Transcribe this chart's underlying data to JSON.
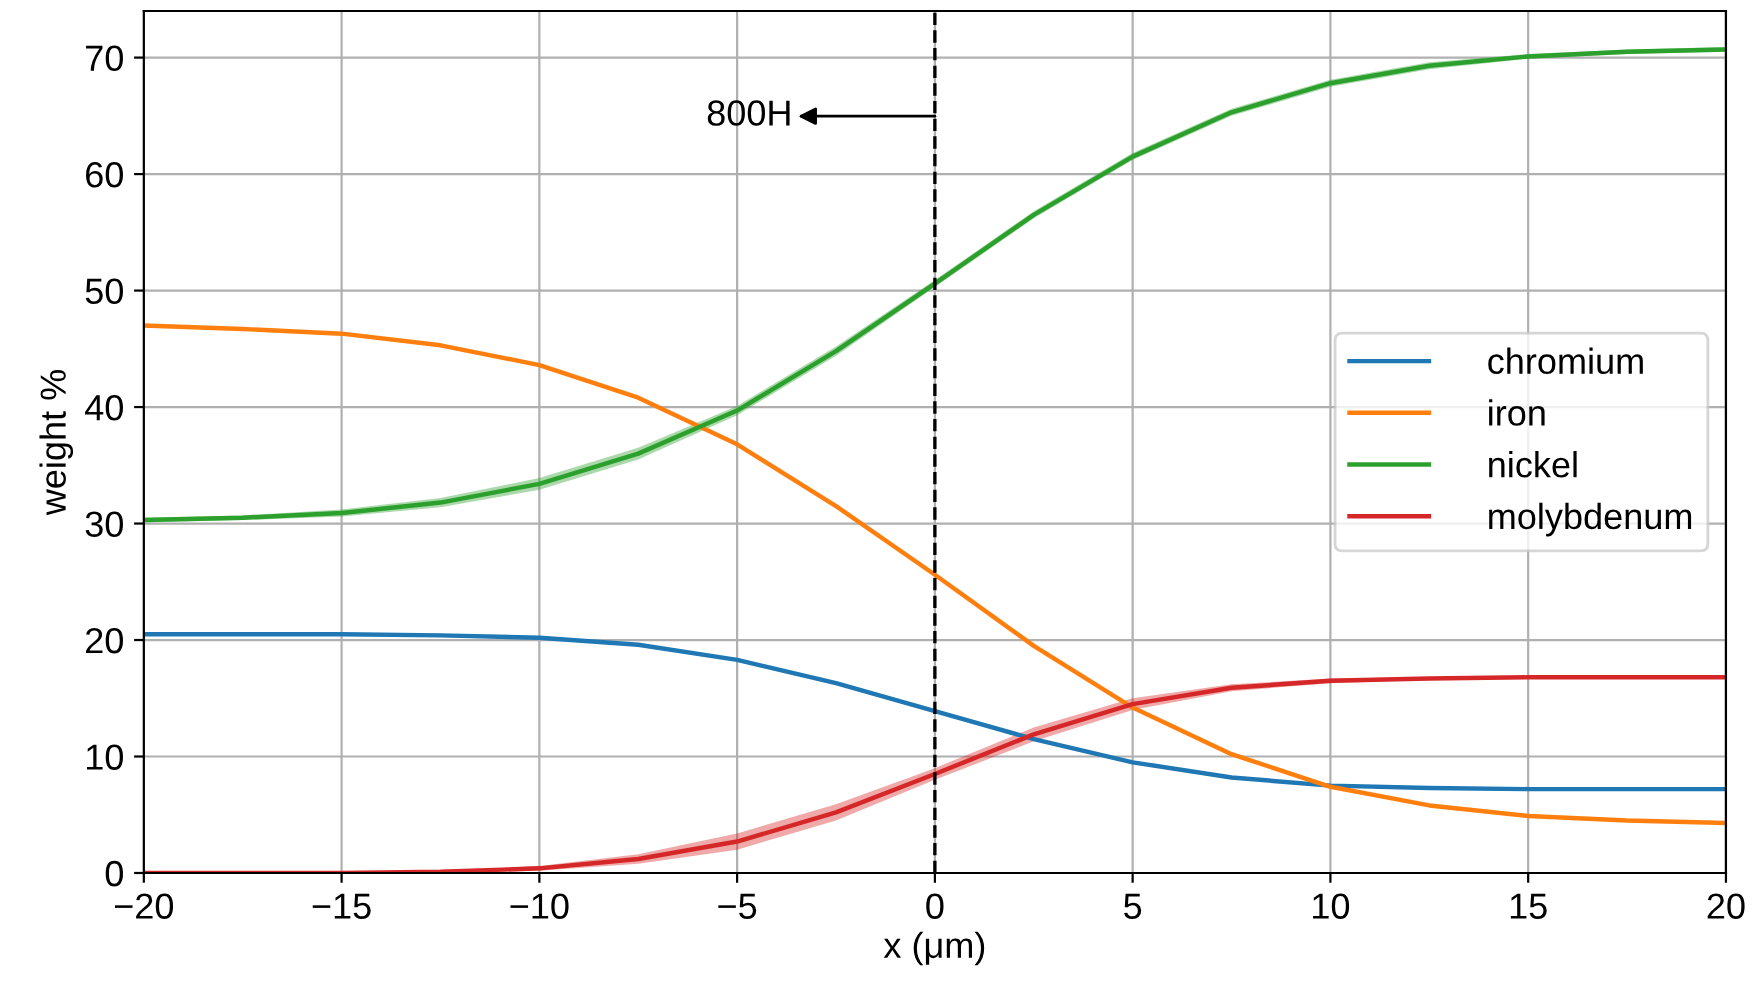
{
  "chart_data": {
    "type": "line",
    "xlabel": "x (μm)",
    "ylabel": "weight %",
    "x": [
      -20,
      -17.5,
      -15,
      -12.5,
      -10,
      -7.5,
      -5,
      -2.5,
      0,
      2.5,
      5,
      7.5,
      10,
      12.5,
      15,
      17.5,
      20
    ],
    "series": [
      {
        "name": "chromium",
        "color": "#1f77b4",
        "values": [
          20.5,
          20.5,
          20.5,
          20.4,
          20.2,
          19.6,
          18.3,
          16.3,
          13.9,
          11.5,
          9.5,
          8.2,
          7.5,
          7.3,
          7.2,
          7.2,
          7.2
        ]
      },
      {
        "name": "iron",
        "color": "#ff7f0e",
        "values": [
          47,
          46.7,
          46.3,
          45.3,
          43.6,
          40.8,
          36.8,
          31.5,
          25.6,
          19.5,
          14.2,
          10.2,
          7.4,
          5.8,
          4.9,
          4.5,
          4.3
        ]
      },
      {
        "name": "nickel",
        "color": "#2ca02c",
        "values": [
          30.3,
          30.5,
          30.9,
          31.8,
          33.4,
          36.0,
          39.7,
          44.8,
          50.6,
          56.5,
          61.5,
          65.3,
          67.8,
          69.3,
          70.1,
          70.5,
          70.7
        ],
        "lower": [
          30.1,
          30.3,
          30.6,
          31.4,
          32.9,
          35.5,
          39.3,
          44.4,
          50.3,
          56.2,
          61.2,
          65.0,
          67.5,
          69.0,
          69.9,
          70.3,
          70.5
        ],
        "upper": [
          30.5,
          30.7,
          31.2,
          32.2,
          33.9,
          36.5,
          40.1,
          45.2,
          50.9,
          56.8,
          61.8,
          65.6,
          68.1,
          69.6,
          70.3,
          70.7,
          70.9
        ]
      },
      {
        "name": "molybdenum",
        "color": "#d62728",
        "values": [
          0,
          0,
          0,
          0.1,
          0.4,
          1.2,
          2.7,
          5.2,
          8.5,
          11.9,
          14.5,
          15.9,
          16.5,
          16.7,
          16.8,
          16.8,
          16.8
        ],
        "lower": [
          0,
          0,
          0,
          0,
          0.2,
          0.8,
          2.0,
          4.5,
          8.0,
          11.3,
          14.0,
          15.6,
          16.3,
          16.6,
          16.7,
          16.7,
          16.7
        ],
        "upper": [
          0,
          0,
          0,
          0.2,
          0.6,
          1.6,
          3.4,
          5.9,
          9.0,
          12.5,
          15.0,
          16.2,
          16.7,
          16.8,
          16.9,
          16.9,
          16.9
        ]
      }
    ],
    "xlim": [
      -20,
      20
    ],
    "xticks": [
      {
        "value": -20,
        "label": "−20"
      },
      {
        "value": -15,
        "label": "−15"
      },
      {
        "value": -10,
        "label": "−10"
      },
      {
        "value": -5,
        "label": "−5"
      },
      0,
      5,
      10,
      15,
      20
    ],
    "ylim": [
      0,
      74
    ],
    "yticks": [
      0,
      10,
      20,
      30,
      40,
      50,
      60,
      70
    ],
    "ref_lines": [
      {
        "axis": "x",
        "value": 0,
        "color": "#000000",
        "line_style": "dashed"
      }
    ],
    "annotations": [
      "800H"
    ],
    "grid": true,
    "legend": "right",
    "line_style": "solid",
    "marker": "none"
  }
}
